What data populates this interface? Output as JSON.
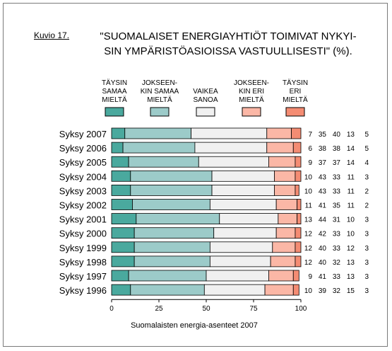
{
  "figure": {
    "label": "Kuvio 17.",
    "title_lines": [
      "\"SUOMALAISET ENERGIAYHTIÖT TOIMIVAT NYKYI-",
      "SIN YMPÄRISTÖASIOISSA VASTUULLISESTI\" (%)."
    ],
    "source_note": "Suomalaisten energia-asenteet 2007"
  },
  "colors": {
    "dark_teal": "#4aa99e",
    "light_teal": "#9ccbc9",
    "neutral": "#f0f0f0",
    "light_salmon": "#fbb7a6",
    "salmon": "#f48c73"
  },
  "chart_data": {
    "type": "bar",
    "orientation": "horizontal",
    "stacked": true,
    "title": "\"SUOMALAISET ENERGIAYHTIÖT TOIMIVAT NYKYISIN YMPÄRISTÖASIOISSA VASTUULLISESTI\" (%).",
    "xlabel": "",
    "ylabel": "",
    "xlim": [
      0,
      100
    ],
    "xticks": [
      0,
      25,
      50,
      75,
      100
    ],
    "grid": false,
    "legend_position": "top",
    "categories": [
      "Syksy 2007",
      "Syksy 2006",
      "Syksy 2005",
      "Syksy 2004",
      "Syksy 2003",
      "Syksy 2002",
      "Syksy 2001",
      "Syksy 2000",
      "Syksy 1999",
      "Syksy 1998",
      "Syksy 1997",
      "Syksy 1996"
    ],
    "series": [
      {
        "name": "TÄYSIN SAMAA MIELTÄ",
        "legend_lines": [
          "TÄYSIN",
          "SAMAA",
          "MIELTÄ"
        ],
        "color": "#4aa99e",
        "values": [
          7,
          6,
          9,
          10,
          10,
          11,
          13,
          12,
          12,
          12,
          9,
          10
        ]
      },
      {
        "name": "JOKSEENKIN SAMAA MIELTÄ",
        "legend_lines": [
          "JOKSEEN-",
          "KIN SAMAA",
          "MIELTÄ"
        ],
        "color": "#9ccbc9",
        "values": [
          35,
          38,
          37,
          43,
          43,
          41,
          44,
          42,
          40,
          40,
          41,
          39
        ]
      },
      {
        "name": "VAIKEA SANOA",
        "legend_lines": [
          "VAIKEA",
          "SANOA"
        ],
        "color": "#f0f0f0",
        "values": [
          40,
          38,
          37,
          33,
          33,
          35,
          31,
          33,
          33,
          32,
          33,
          32
        ]
      },
      {
        "name": "JOKSEENKIN ERI MIELTÄ",
        "legend_lines": [
          "JOKSEEN-",
          "KIN ERI",
          "MIELTÄ"
        ],
        "color": "#fbb7a6",
        "values": [
          13,
          14,
          14,
          11,
          11,
          11,
          10,
          10,
          12,
          13,
          13,
          15
        ]
      },
      {
        "name": "TÄYSIN ERI MIELTÄ",
        "legend_lines": [
          "TÄYSIN",
          "ERI",
          "MIELTÄ"
        ],
        "color": "#f48c73",
        "values": [
          5,
          5,
          4,
          3,
          2,
          2,
          3,
          3,
          3,
          3,
          3,
          3
        ]
      }
    ]
  }
}
